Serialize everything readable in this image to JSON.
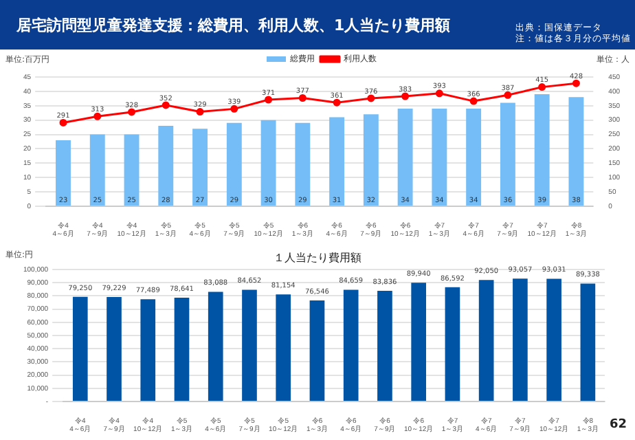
{
  "chart_data": [
    {
      "type": "bar",
      "title": "居宅訪問型児童発達支援：総費用、利用人数、1人当たり費用額",
      "ylabel": "単位:百万円",
      "y2label": "単位：人",
      "annotations": [
        "出典：国保連データ",
        "注：値は各３月分の平均値"
      ],
      "categories": [
        "令4\n4～6月",
        "令4\n7～9月",
        "令4\n10～12月",
        "令5\n1～3月",
        "令5\n4～6月",
        "令5\n7～9月",
        "令5\n10～12月",
        "令6\n1～3月",
        "令6\n4～6月",
        "令6\n7～9月",
        "令6\n10～12月",
        "令7\n1～3月",
        "令7\n4～6月",
        "令7\n7～9月",
        "令7\n10～12月",
        "令8\n1～3月"
      ],
      "series": [
        {
          "name": "総費用",
          "type": "bar",
          "color": "#75bdf7",
          "values": [
            23,
            25,
            25,
            28,
            27,
            29,
            30,
            29,
            31,
            32,
            34,
            34,
            34,
            36,
            39,
            38
          ]
        },
        {
          "name": "利用人数",
          "type": "line",
          "axis": "y2",
          "color": "#ff0000",
          "marker": "circle",
          "values": [
            291,
            313,
            328,
            352,
            329,
            339,
            371,
            377,
            361,
            376,
            383,
            393,
            366,
            387,
            415,
            428
          ]
        }
      ],
      "ylim": [
        0,
        45
      ],
      "yticks": [
        0,
        5,
        10,
        15,
        20,
        25,
        30,
        35,
        40,
        45
      ],
      "y2lim": [
        0,
        450
      ],
      "y2ticks": [
        0,
        50,
        100,
        150,
        200,
        250,
        300,
        350,
        400,
        450
      ],
      "grid": "y",
      "legend": "top",
      "data_labels": true
    },
    {
      "type": "bar",
      "title": "１人当たり費用額",
      "ylabel": "単位:円",
      "annotations": [
        "62"
      ],
      "categories": [
        "令4\n4～6月",
        "令4\n7～9月",
        "令4\n10～12月",
        "令5\n1～3月",
        "令5\n4～6月",
        "令5\n7～9月",
        "令5\n10～12月",
        "令6\n1～3月",
        "令6\n4～6月",
        "令6\n7～9月",
        "令6\n10～12月",
        "令7\n1～3月",
        "令7\n4～6月",
        "令7\n7～9月",
        "令7\n10～12月",
        "令8\n1～3月"
      ],
      "series": [
        {
          "color": "#0054a6",
          "values": [
            79250,
            79229,
            77489,
            78641,
            83088,
            84652,
            81154,
            76546,
            84659,
            83836,
            89940,
            86592,
            92050,
            93057,
            93031,
            89338
          ],
          "value_labels": [
            "79,250",
            "79,229",
            "77,489",
            "78,641",
            "83,088",
            "84,652",
            "81,154",
            "76,546",
            "84,659",
            "83,836",
            "89,940",
            "86,592",
            "92,050",
            "93,057",
            "93,031",
            "89,338"
          ]
        }
      ],
      "ylim": [
        0,
        100000
      ],
      "yticks": [
        {
          "value": 0,
          "label": "-"
        },
        {
          "value": 10000,
          "label": "10,000"
        },
        {
          "value": 20000,
          "label": "20,000"
        },
        {
          "value": 30000,
          "label": "30,000"
        },
        {
          "value": 40000,
          "label": "40,000"
        },
        {
          "value": 50000,
          "label": "50,000"
        },
        {
          "value": 60000,
          "label": "60,000"
        },
        {
          "value": 70000,
          "label": "70,000"
        },
        {
          "value": 80000,
          "label": "80,000"
        },
        {
          "value": 90000,
          "label": "90,000"
        },
        {
          "value": 100000,
          "label": "100,000"
        }
      ],
      "grid": "y"
    }
  ]
}
